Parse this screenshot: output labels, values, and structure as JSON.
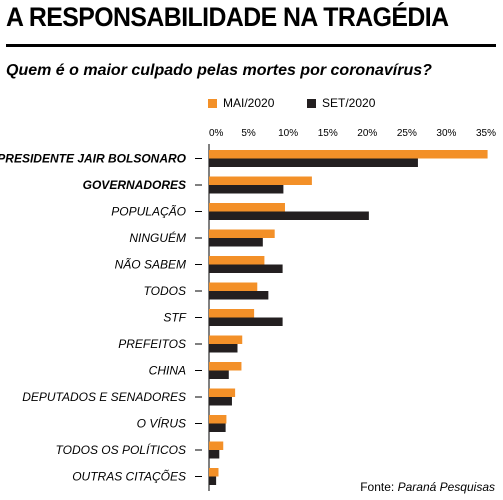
{
  "title": "A RESPONSABILIDADE NA TRAGÉDIA",
  "subtitle": "Quem é o maior culpado pelas mortes por coronavírus?",
  "source_label": "Fonte:",
  "source_name": "Paraná Pesquisas",
  "colors": {
    "mai": "#f39028",
    "set": "#231f20"
  },
  "chart_data": {
    "type": "bar",
    "orientation": "horizontal",
    "title": "Quem é o maior culpado pelas mortes por coronavírus?",
    "categories": [
      "PRESIDENTE JAIR BOLSONARO",
      "GOVERNADORES",
      "POPULAÇÃO",
      "NINGUÉM",
      "NÃO SABEM",
      "TODOS",
      "STF",
      "PREFEITOS",
      "CHINA",
      "DEPUTADOS E SENADORES",
      "O VÍRUS",
      "TODOS OS POLÍTICOS",
      "OUTRAS CITAÇÕES"
    ],
    "series": [
      {
        "name": "MAI/2020",
        "values": [
          35.2,
          13.0,
          9.6,
          8.3,
          7.0,
          6.1,
          5.7,
          4.2,
          4.1,
          3.3,
          2.2,
          1.8,
          1.2
        ]
      },
      {
        "name": "SET/2020",
        "values": [
          26.4,
          9.4,
          20.2,
          6.8,
          9.3,
          7.5,
          9.3,
          3.6,
          2.5,
          2.9,
          2.1,
          1.3,
          0.9
        ]
      }
    ],
    "xlim": [
      0,
      35
    ],
    "x_ticks": [
      "0%",
      "5%",
      "10%",
      "15%",
      "20%",
      "25%",
      "30%",
      "35%"
    ],
    "legend_position": "top"
  }
}
